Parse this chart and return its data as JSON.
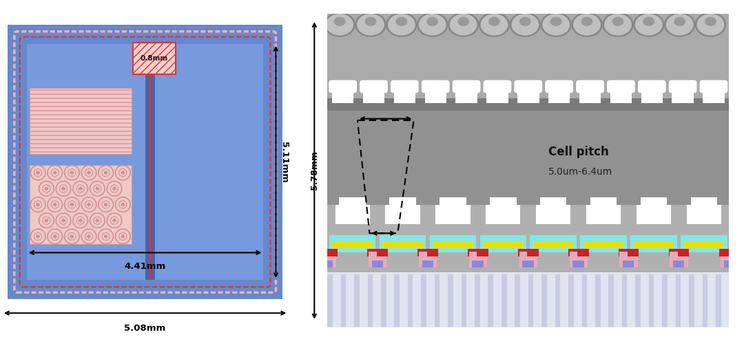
{
  "bg_color": "#ffffff",
  "left_panel": {
    "chip_bg": "#6688cc",
    "chip_border_green": "#2d8a2d",
    "chip_border_red": "#dd3333",
    "chip_border_pink_light": "#ffb0b0",
    "chip_inner_blue": "#7799dd",
    "center_bar_blue": "#5577cc",
    "center_bar_red": "#dd3333",
    "gate_pad_fill": "#ffcccc",
    "gate_pad_edge": "#dd3333",
    "striped_fill": "#f0c8c8",
    "stripe_color": "#e0a0a8",
    "hex_fill": "#f0c8c8",
    "hex_color": "#d09090",
    "dim_4p41": "4.41mm",
    "dim_5p08": "5.08mm",
    "dim_5p11": "5.11mm",
    "dim_0p8": "0.8mm"
  },
  "right_panel": {
    "cell_pitch_label": "Cell pitch",
    "cell_pitch_value": "5.0um-6.4um",
    "dim_5p78": "5.78mm",
    "sem_upper_dark": "#7a7a7a",
    "sem_upper_light": "#aaaaaa",
    "sem_bump_dark": "#888888",
    "sem_bump_light": "#c0c0c0",
    "sem_comb_white": "#ffffff",
    "sem_mid_gray": "#919191",
    "cross_upper_gray": "#b0b0b0",
    "cross_mid_gray": "#c8c8c8",
    "substrate_light": "#e0e4f0",
    "substrate_line": "#c8cce0",
    "gate_cyan": "#80e8e8",
    "gate_yellow": "#e8e000",
    "gate_red": "#cc2222",
    "gate_blue": "#8888dd",
    "gate_white": "#f0f0f0"
  }
}
